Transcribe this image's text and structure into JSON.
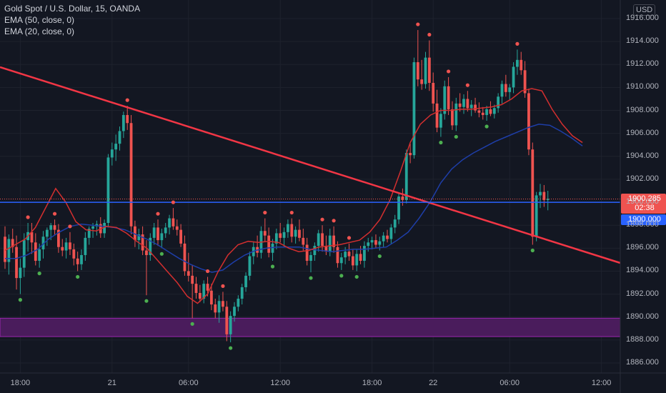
{
  "legend": {
    "symbol_line": "Gold Spot / U.S. Dollar, 15, OANDA",
    "ema50_line": "EMA (50, close, 0)",
    "ema20_line": "EMA (20, close, 0)"
  },
  "currency_label": "USD",
  "price_tags": {
    "current_price": "1900.285",
    "countdown": "02:38",
    "level_price": "1900.000"
  },
  "colors": {
    "background": "#131722",
    "up_candle": "#26a69a",
    "down_candle": "#ef5350",
    "ema20": "#d32f2f",
    "ema50": "#1e3ea8",
    "trendline": "#f23645",
    "horizontal_level": "#2962ff",
    "zone_fill": "#4a1c5c",
    "zone_border": "#9c27b0"
  },
  "chart_data": {
    "type": "candlestick",
    "symbol": "Gold Spot / U.S. Dollar",
    "interval": "15",
    "source": "OANDA",
    "ylim": [
      1885.0,
      1916.4
    ],
    "y_ticks": [
      "1886.000",
      "1888.000",
      "1890.000",
      "1892.000",
      "1894.000",
      "1896.000",
      "1898.000",
      "1900.000",
      "1902.000",
      "1904.000",
      "1906.000",
      "1908.000",
      "1910.000",
      "1912.000",
      "1914.000",
      "1916.000"
    ],
    "x_ticks": [
      "18:00",
      "21",
      "06:00",
      "12:00",
      "18:00",
      "22",
      "06:00",
      "12:00"
    ],
    "x_tick_index": [
      4,
      28,
      48,
      72,
      96,
      112,
      132,
      156
    ],
    "candles": [
      [
        1897.0,
        1897.9,
        1894.2,
        1894.8
      ],
      [
        1894.8,
        1897.2,
        1893.7,
        1896.8
      ],
      [
        1896.8,
        1897.7,
        1895.6,
        1896.1
      ],
      [
        1896.1,
        1897.1,
        1892.4,
        1893.4
      ],
      [
        1893.4,
        1895.1,
        1892.0,
        1894.3
      ],
      [
        1894.3,
        1897.3,
        1893.5,
        1896.7
      ],
      [
        1896.7,
        1898.2,
        1895.7,
        1897.4
      ],
      [
        1897.4,
        1898.2,
        1895.5,
        1896.5
      ],
      [
        1896.5,
        1897.3,
        1894.5,
        1894.9
      ],
      [
        1894.9,
        1896.4,
        1894.3,
        1895.9
      ],
      [
        1895.9,
        1897.5,
        1895.1,
        1897.0
      ],
      [
        1897.0,
        1897.8,
        1896.2,
        1897.6
      ],
      [
        1897.6,
        1898.2,
        1896.7,
        1898.0
      ],
      [
        1898.0,
        1898.5,
        1897.1,
        1897.6
      ],
      [
        1897.6,
        1898.1,
        1895.6,
        1896.1
      ],
      [
        1896.1,
        1896.8,
        1895.3,
        1895.8
      ],
      [
        1895.8,
        1896.9,
        1895.1,
        1896.5
      ],
      [
        1896.5,
        1897.4,
        1895.4,
        1895.9
      ],
      [
        1895.9,
        1896.4,
        1894.5,
        1895.1
      ],
      [
        1895.1,
        1895.7,
        1894.0,
        1894.6
      ],
      [
        1894.6,
        1895.9,
        1894.1,
        1895.4
      ],
      [
        1895.4,
        1897.4,
        1894.9,
        1896.9
      ],
      [
        1896.9,
        1897.9,
        1896.3,
        1897.7
      ],
      [
        1897.7,
        1898.2,
        1896.9,
        1897.9
      ],
      [
        1897.9,
        1898.4,
        1897.1,
        1898.1
      ],
      [
        1898.1,
        1898.7,
        1896.9,
        1897.3
      ],
      [
        1897.3,
        1898.5,
        1896.9,
        1898.2
      ],
      [
        1898.2,
        1904.2,
        1897.8,
        1903.9
      ],
      [
        1903.9,
        1905.2,
        1903.2,
        1904.6
      ],
      [
        1904.6,
        1905.9,
        1903.6,
        1905.1
      ],
      [
        1905.1,
        1906.6,
        1904.5,
        1906.2
      ],
      [
        1906.2,
        1907.9,
        1905.6,
        1907.6
      ],
      [
        1907.6,
        1908.4,
        1906.3,
        1906.9
      ],
      [
        1906.9,
        1907.6,
        1897.2,
        1897.9
      ],
      [
        1897.9,
        1898.4,
        1896.1,
        1896.7
      ],
      [
        1896.7,
        1897.7,
        1895.9,
        1897.2
      ],
      [
        1897.2,
        1897.9,
        1895.4,
        1895.8
      ],
      [
        1895.8,
        1896.7,
        1891.9,
        1895.4
      ],
      [
        1895.4,
        1897.3,
        1894.9,
        1896.9
      ],
      [
        1896.9,
        1898.2,
        1896.3,
        1897.8
      ],
      [
        1897.8,
        1898.5,
        1896.2,
        1896.7
      ],
      [
        1896.7,
        1897.7,
        1896.0,
        1897.3
      ],
      [
        1897.3,
        1898.2,
        1896.9,
        1897.8
      ],
      [
        1897.8,
        1898.9,
        1897.2,
        1898.6
      ],
      [
        1898.6,
        1899.5,
        1897.6,
        1897.9
      ],
      [
        1897.9,
        1898.5,
        1897.1,
        1897.6
      ],
      [
        1897.6,
        1898.1,
        1896.1,
        1896.4
      ],
      [
        1896.4,
        1897.1,
        1893.6,
        1894.0
      ],
      [
        1894.0,
        1895.6,
        1893.1,
        1893.6
      ],
      [
        1893.6,
        1894.5,
        1889.9,
        1892.9
      ],
      [
        1892.9,
        1893.5,
        1891.6,
        1892.1
      ],
      [
        1892.1,
        1892.8,
        1891.3,
        1891.6
      ],
      [
        1891.6,
        1893.2,
        1891.2,
        1892.9
      ],
      [
        1892.9,
        1893.5,
        1891.8,
        1892.3
      ],
      [
        1892.3,
        1892.9,
        1890.6,
        1891.1
      ],
      [
        1891.1,
        1891.6,
        1889.9,
        1890.4
      ],
      [
        1890.4,
        1891.9,
        1889.5,
        1891.4
      ],
      [
        1891.4,
        1892.2,
        1890.5,
        1890.9
      ],
      [
        1890.9,
        1891.4,
        1887.9,
        1888.5
      ],
      [
        1888.5,
        1890.5,
        1887.8,
        1890.1
      ],
      [
        1890.1,
        1891.3,
        1889.6,
        1890.9
      ],
      [
        1890.9,
        1891.9,
        1890.5,
        1891.6
      ],
      [
        1891.6,
        1892.9,
        1891.1,
        1892.6
      ],
      [
        1892.6,
        1893.9,
        1892.2,
        1893.6
      ],
      [
        1893.6,
        1895.7,
        1893.2,
        1895.3
      ],
      [
        1895.3,
        1896.6,
        1894.6,
        1896.1
      ],
      [
        1896.1,
        1897.1,
        1895.2,
        1895.6
      ],
      [
        1895.6,
        1897.9,
        1895.1,
        1897.5
      ],
      [
        1897.5,
        1898.6,
        1896.6,
        1897.1
      ],
      [
        1897.1,
        1897.8,
        1895.2,
        1895.6
      ],
      [
        1895.6,
        1896.8,
        1894.9,
        1896.4
      ],
      [
        1896.4,
        1897.7,
        1895.9,
        1897.3
      ],
      [
        1897.3,
        1898.2,
        1896.5,
        1896.9
      ],
      [
        1896.9,
        1897.8,
        1896.1,
        1897.4
      ],
      [
        1897.4,
        1898.5,
        1896.9,
        1898.1
      ],
      [
        1898.1,
        1898.6,
        1896.5,
        1897.0
      ],
      [
        1897.0,
        1897.9,
        1896.4,
        1897.6
      ],
      [
        1897.6,
        1898.5,
        1896.6,
        1896.9
      ],
      [
        1896.9,
        1897.7,
        1895.8,
        1896.3
      ],
      [
        1896.3,
        1896.9,
        1894.5,
        1894.9
      ],
      [
        1894.9,
        1895.7,
        1893.9,
        1895.4
      ],
      [
        1895.4,
        1896.5,
        1894.9,
        1896.2
      ],
      [
        1896.2,
        1897.6,
        1895.7,
        1897.3
      ],
      [
        1897.3,
        1898.0,
        1895.7,
        1896.2
      ],
      [
        1896.2,
        1897.1,
        1895.4,
        1895.7
      ],
      [
        1895.7,
        1897.7,
        1895.3,
        1897.1
      ],
      [
        1897.1,
        1897.9,
        1895.6,
        1896.1
      ],
      [
        1896.1,
        1896.6,
        1894.3,
        1894.7
      ],
      [
        1894.7,
        1895.6,
        1894.1,
        1895.2
      ],
      [
        1895.2,
        1896.1,
        1894.6,
        1895.7
      ],
      [
        1895.7,
        1896.4,
        1894.9,
        1895.3
      ],
      [
        1895.3,
        1895.9,
        1894.1,
        1894.5
      ],
      [
        1894.5,
        1895.9,
        1894.0,
        1895.5
      ],
      [
        1895.5,
        1896.2,
        1894.6,
        1894.9
      ],
      [
        1894.9,
        1896.6,
        1894.3,
        1896.2
      ],
      [
        1896.2,
        1896.9,
        1895.7,
        1896.5
      ],
      [
        1896.5,
        1897.0,
        1895.9,
        1896.7
      ],
      [
        1896.7,
        1897.2,
        1896.0,
        1896.3
      ],
      [
        1896.3,
        1897.0,
        1895.8,
        1896.6
      ],
      [
        1896.6,
        1897.4,
        1896.1,
        1897.1
      ],
      [
        1897.1,
        1897.6,
        1896.5,
        1896.8
      ],
      [
        1896.8,
        1898.1,
        1896.4,
        1897.8
      ],
      [
        1897.8,
        1898.9,
        1897.3,
        1898.5
      ],
      [
        1898.5,
        1900.8,
        1898.1,
        1900.5
      ],
      [
        1900.5,
        1901.2,
        1899.7,
        1900.2
      ],
      [
        1900.2,
        1904.6,
        1899.9,
        1904.3
      ],
      [
        1904.3,
        1905.1,
        1903.4,
        1904.1
      ],
      [
        1904.1,
        1912.6,
        1903.8,
        1912.2
      ],
      [
        1912.2,
        1915.0,
        1910.1,
        1910.7
      ],
      [
        1910.7,
        1912.4,
        1909.8,
        1910.3
      ],
      [
        1910.3,
        1913.1,
        1909.9,
        1912.6
      ],
      [
        1912.6,
        1914.1,
        1909.7,
        1910.4
      ],
      [
        1910.4,
        1911.3,
        1907.9,
        1908.6
      ],
      [
        1908.6,
        1909.8,
        1906.1,
        1906.5
      ],
      [
        1906.5,
        1908.2,
        1905.7,
        1907.7
      ],
      [
        1907.7,
        1910.6,
        1907.2,
        1910.1
      ],
      [
        1910.1,
        1910.9,
        1907.6,
        1908.1
      ],
      [
        1908.1,
        1908.8,
        1906.3,
        1906.7
      ],
      [
        1906.7,
        1909.1,
        1906.2,
        1908.6
      ],
      [
        1908.6,
        1909.5,
        1907.9,
        1908.3
      ],
      [
        1908.3,
        1909.4,
        1907.7,
        1909.0
      ],
      [
        1909.0,
        1909.7,
        1907.9,
        1908.2
      ],
      [
        1908.2,
        1908.9,
        1907.5,
        1908.5
      ],
      [
        1908.5,
        1909.1,
        1907.8,
        1908.0
      ],
      [
        1908.0,
        1908.7,
        1907.4,
        1907.8
      ],
      [
        1907.8,
        1908.3,
        1907.2,
        1907.6
      ],
      [
        1907.6,
        1908.4,
        1907.1,
        1908.1
      ],
      [
        1908.1,
        1908.8,
        1907.5,
        1907.7
      ],
      [
        1907.7,
        1908.5,
        1907.3,
        1908.2
      ],
      [
        1908.2,
        1909.5,
        1907.8,
        1909.2
      ],
      [
        1909.2,
        1910.6,
        1908.6,
        1910.3
      ],
      [
        1910.3,
        1911.1,
        1909.2,
        1909.6
      ],
      [
        1909.6,
        1910.3,
        1908.9,
        1910.0
      ],
      [
        1910.0,
        1912.2,
        1909.5,
        1911.8
      ],
      [
        1911.8,
        1913.3,
        1911.1,
        1912.4
      ],
      [
        1912.4,
        1913.1,
        1911.1,
        1911.5
      ],
      [
        1911.5,
        1912.3,
        1909.1,
        1909.5
      ],
      [
        1909.5,
        1909.9,
        1904.1,
        1904.6
      ],
      [
        1904.6,
        1905.2,
        1896.3,
        1897.0
      ],
      [
        1897.0,
        1900.9,
        1896.6,
        1900.6
      ],
      [
        1900.6,
        1901.6,
        1899.5,
        1900.9
      ],
      [
        1900.9,
        1901.5,
        1899.6,
        1900.2
      ],
      [
        1900.2,
        1901.0,
        1899.3,
        1900.3
      ]
    ],
    "ema20": [
      1895.8,
      1896.3,
      1896.8,
      1897.8,
      1899.5,
      1901.2,
      1900.0,
      1898.3,
      1897.6,
      1897.5,
      1897.9,
      1897.8,
      1897.3,
      1896.6,
      1896.0,
      1895.0,
      1894.0,
      1893.0,
      1891.8,
      1891.2,
      1892.0,
      1893.9,
      1895.4,
      1896.3,
      1896.6,
      1896.5,
      1896.6,
      1896.5,
      1896.0,
      1895.7,
      1895.8,
      1896.1,
      1896.2,
      1896.3,
      1896.5,
      1896.7,
      1897.4,
      1898.5,
      1900.2,
      1902.6,
      1905.2,
      1906.8,
      1907.6,
      1908.0,
      1908.0,
      1908.1,
      1908.1,
      1908.2,
      1908.3,
      1908.5,
      1909.0,
      1909.7,
      1909.9,
      1909.7,
      1908.1,
      1906.8,
      1905.8,
      1905.2
    ],
    "ema50": [
      1895.1,
      1895.1,
      1895.4,
      1895.9,
      1896.8,
      1897.4,
      1897.9,
      1898.1,
      1898.0,
      1897.9,
      1897.8,
      1897.6,
      1897.2,
      1896.8,
      1896.3,
      1895.7,
      1895.1,
      1894.6,
      1894.2,
      1893.9,
      1894.1,
      1894.8,
      1895.4,
      1895.8,
      1896.0,
      1896.1,
      1896.1,
      1896.1,
      1895.9,
      1895.8,
      1895.7,
      1895.8,
      1895.9,
      1895.9,
      1896.0,
      1896.1,
      1896.7,
      1897.4,
      1898.6,
      1900.0,
      1901.7,
      1902.9,
      1903.7,
      1904.3,
      1904.8,
      1905.3,
      1905.7,
      1906.1,
      1906.5,
      1906.8,
      1906.7,
      1906.2,
      1905.6,
      1904.9
    ],
    "horizontal_level": 1900.0,
    "current_price": 1900.285,
    "support_zone": [
      1888.3,
      1889.9
    ]
  }
}
